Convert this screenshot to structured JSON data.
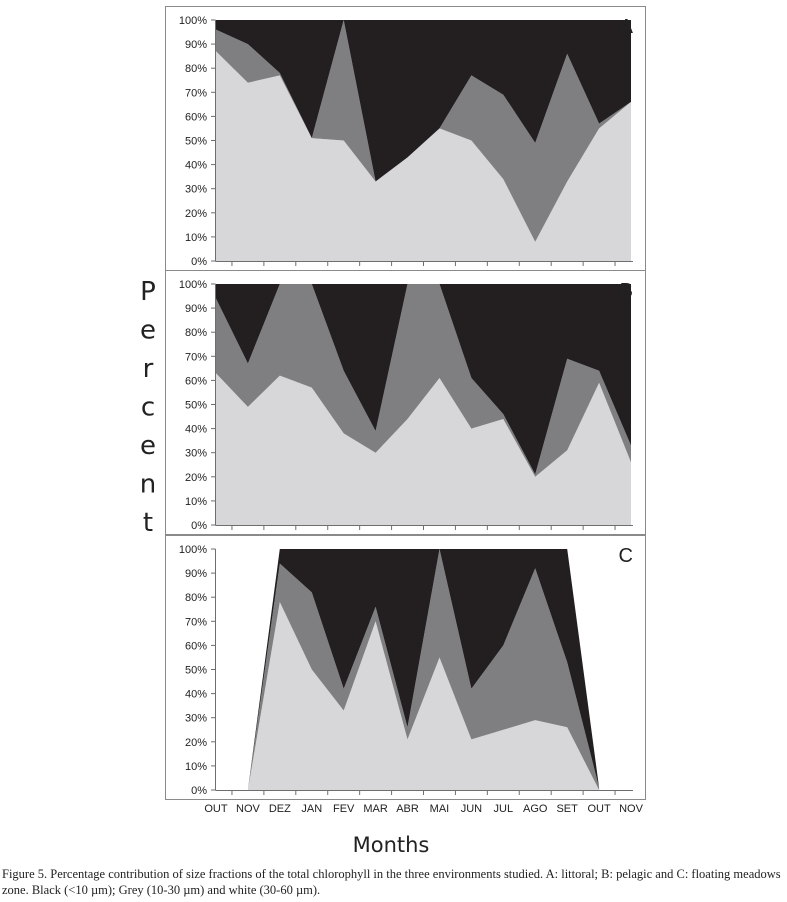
{
  "chart_data": [
    {
      "type": "area",
      "panel_label": "A",
      "categories": [
        "OUT",
        "NOV",
        "DEZ",
        "JAN",
        "FEV",
        "MAR",
        "ABR",
        "MAI",
        "JUN",
        "JUL",
        "AGO",
        "SET",
        "OUT",
        "NOV"
      ],
      "stacked": true,
      "y_unit": "percent",
      "ylim": [
        0,
        100
      ],
      "series": [
        {
          "name": "white (30-60 µm)",
          "values": [
            87,
            74,
            77,
            51,
            50,
            33,
            43,
            55,
            50,
            34,
            8,
            33,
            55,
            66
          ]
        },
        {
          "name": "Grey (10-30 µm)",
          "values": [
            9,
            16,
            1,
            0,
            50,
            0,
            0,
            0,
            27,
            35,
            41,
            53,
            2,
            0
          ]
        },
        {
          "name": "Black (<10 µm)",
          "values": [
            4,
            10,
            22,
            49,
            0,
            67,
            57,
            45,
            23,
            31,
            51,
            14,
            43,
            34
          ]
        }
      ]
    },
    {
      "type": "area",
      "panel_label": "B",
      "categories": [
        "OUT",
        "NOV",
        "DEZ",
        "JAN",
        "FEV",
        "MAR",
        "ABR",
        "MAI",
        "JUN",
        "JUL",
        "AGO",
        "SET",
        "OUT",
        "NOV"
      ],
      "stacked": true,
      "y_unit": "percent",
      "ylim": [
        0,
        100
      ],
      "series": [
        {
          "name": "white (30-60 µm)",
          "values": [
            63,
            49,
            62,
            57,
            38,
            30,
            44,
            61,
            40,
            44,
            20,
            31,
            59,
            26
          ]
        },
        {
          "name": "Grey (10-30 µm)",
          "values": [
            31,
            18,
            38,
            43,
            26,
            9,
            56,
            39,
            21,
            2,
            1,
            38,
            5,
            7
          ]
        },
        {
          "name": "Black (<10 µm)",
          "values": [
            6,
            33,
            0,
            0,
            36,
            61,
            0,
            0,
            39,
            54,
            79,
            31,
            36,
            67
          ]
        }
      ]
    },
    {
      "type": "area",
      "panel_label": "C",
      "categories": [
        "OUT",
        "NOV",
        "DEZ",
        "JAN",
        "FEV",
        "MAR",
        "ABR",
        "MAI",
        "JUN",
        "JUL",
        "AGO",
        "SET",
        "OUT",
        "NOV"
      ],
      "stacked": true,
      "y_unit": "percent",
      "ylim": [
        0,
        100
      ],
      "series": [
        {
          "name": "white (30-60 µm)",
          "values": [
            null,
            0,
            78,
            50,
            33,
            70,
            21,
            55,
            21,
            25,
            29,
            26,
            0,
            null
          ]
        },
        {
          "name": "Grey (10-30 µm)",
          "values": [
            null,
            0,
            16,
            32,
            9,
            6,
            5,
            45,
            21,
            35,
            63,
            27,
            1,
            null
          ]
        },
        {
          "name": "Black (<10 µm)",
          "values": [
            null,
            0,
            6,
            18,
            58,
            24,
            74,
            0,
            58,
            40,
            8,
            47,
            0,
            null
          ]
        }
      ]
    }
  ],
  "yticks": [
    "0%",
    "10%",
    "20%",
    "30%",
    "40%",
    "50%",
    "60%",
    "70%",
    "80%",
    "90%",
    "100%"
  ],
  "ylabel": "Percent",
  "xlabel": "Months",
  "colors": {
    "white": "#d7d7d9",
    "grey": "#7f7f81",
    "black": "#231f20",
    "frame": "#8a8a8a"
  },
  "caption": "Figure 5. Percentage contribution of size fractions of the total chlorophyll in the three environments studied. A: littoral; B: pelagic and C: floating meadows zone. Black (<10 µm); Grey (10-30 µm) and white (30-60 µm)."
}
